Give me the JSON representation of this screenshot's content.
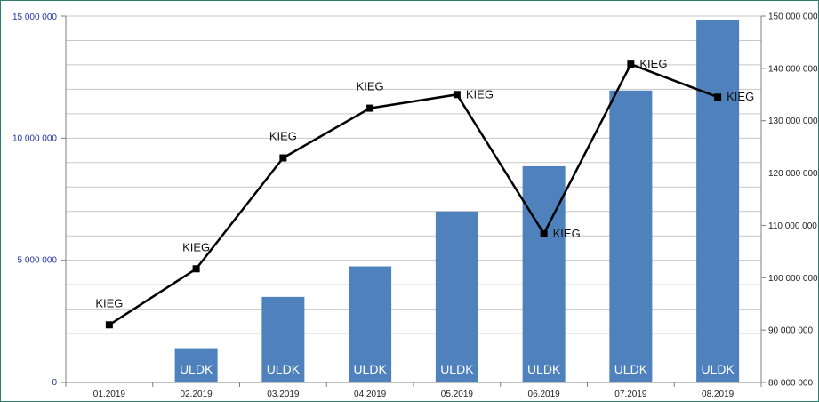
{
  "chart_data": {
    "type": "bar",
    "categories": [
      "01.2019",
      "02.2019",
      "03.2019",
      "04.2019",
      "05.2019",
      "06.2019",
      "07.2019",
      "08.2019"
    ],
    "series": [
      {
        "name": "ULDK",
        "kind": "bar",
        "axis": "left",
        "values": [
          30000,
          1400000,
          3500000,
          4750000,
          7000000,
          8850000,
          11950000,
          14850000
        ],
        "labels": [
          "",
          "ULDK",
          "ULDK",
          "ULDK",
          "ULDK",
          "ULDK",
          "ULDK",
          "ULDK"
        ],
        "color": "#4f81bd"
      },
      {
        "name": "KIEG",
        "kind": "line",
        "axis": "right",
        "values": [
          91000000,
          101700000,
          122900000,
          132400000,
          135000000,
          108400000,
          140800000,
          134500000
        ],
        "labels": [
          "KIEG",
          "KIEG",
          "KIEG",
          "KIEG",
          "KIEG",
          "KIEG",
          "KIEG",
          "KIEG"
        ],
        "color": "#000000"
      }
    ],
    "y_left": {
      "ylim": [
        0,
        15000000
      ],
      "ticks": [
        0,
        5000000,
        10000000,
        15000000
      ],
      "tick_labels": [
        "0",
        "5 000 000",
        "10 000 000",
        "15 000 000"
      ]
    },
    "y_right": {
      "ylim": [
        80000000,
        150000000
      ],
      "ticks": [
        80000000,
        90000000,
        100000000,
        110000000,
        120000000,
        130000000,
        140000000,
        150000000
      ],
      "tick_labels": [
        "80 000 000",
        "90 000 000",
        "100 000 000",
        "110 000 000",
        "120 000 000",
        "130 000 000",
        "140 000 000",
        "150 000 000"
      ]
    },
    "grid": true,
    "title": "",
    "xlabel": "",
    "ylabel": ""
  }
}
